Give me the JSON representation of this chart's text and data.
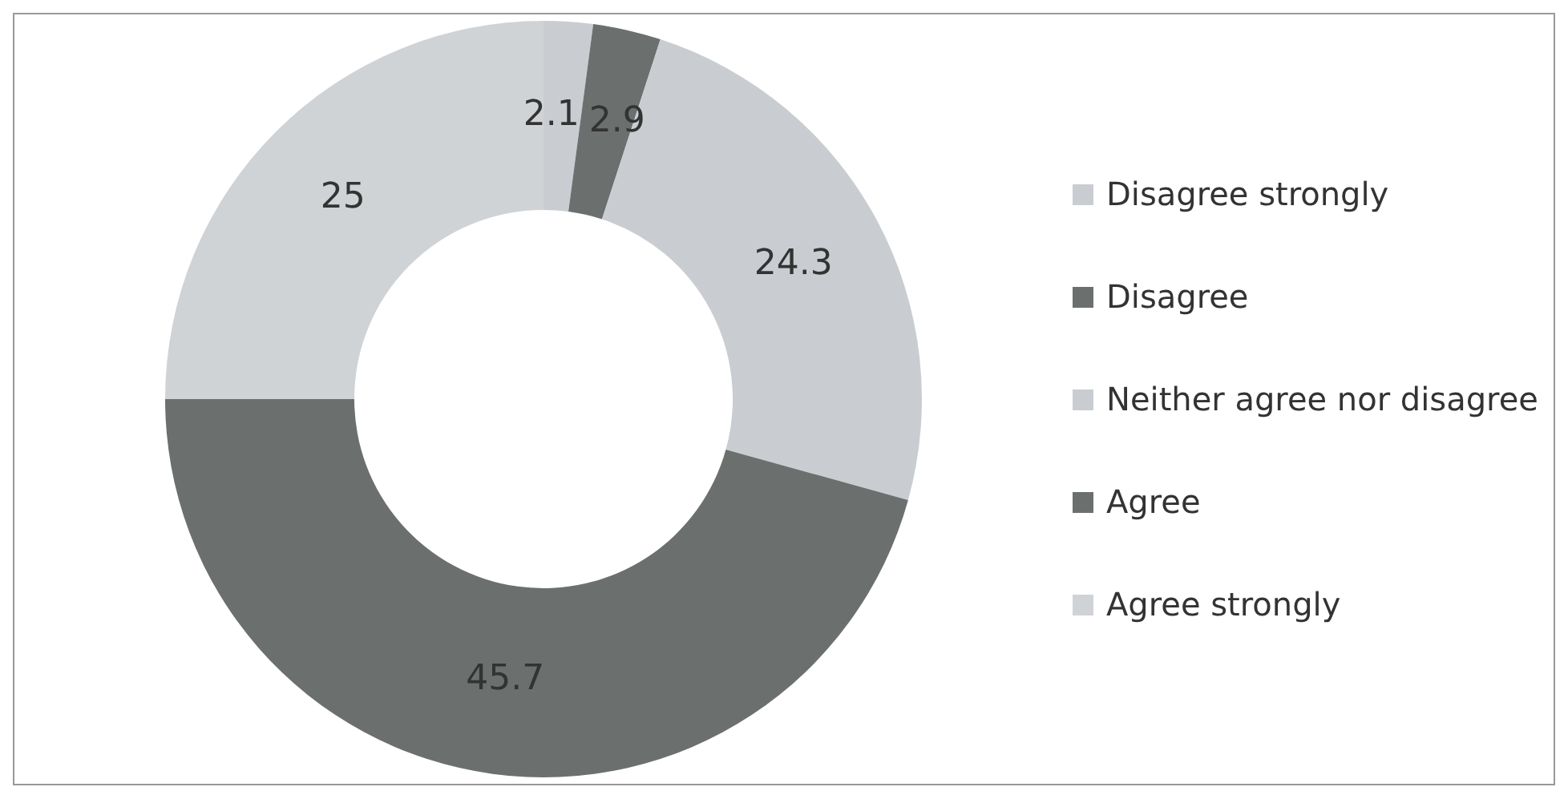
{
  "chart_data": {
    "type": "donut",
    "categories": [
      "Disagree strongly",
      "Disagree",
      "Neither agree nor disagree",
      "Agree",
      "Agree strongly"
    ],
    "values": [
      2.1,
      2.9,
      24.3,
      45.7,
      25
    ],
    "colors": [
      "#c9cdd1",
      "#6b706e",
      "#c9cdd1",
      "#6b706e",
      "#d0d3d6"
    ],
    "data_labels": true,
    "legend": "right"
  }
}
